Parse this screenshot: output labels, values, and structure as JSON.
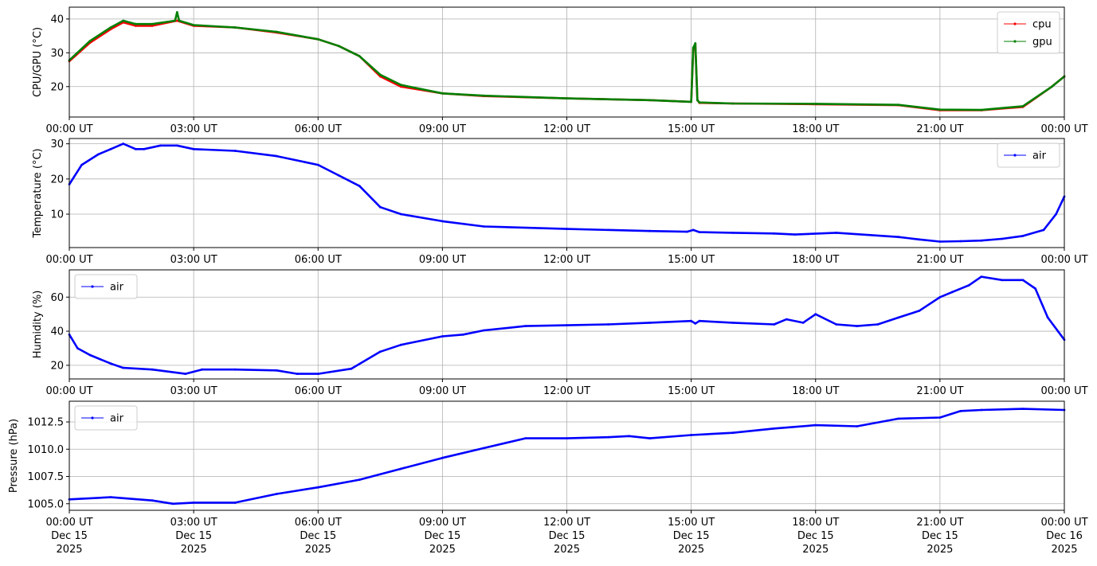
{
  "x_ticks": [
    "00:00 UT",
    "03:00 UT",
    "06:00 UT",
    "09:00 UT",
    "12:00 UT",
    "15:00 UT",
    "18:00 UT",
    "21:00 UT",
    "00:00 UT"
  ],
  "x_ticks_bottom": [
    [
      "00:00 UT",
      "Dec 15",
      "2025"
    ],
    [
      "03:00 UT",
      "Dec 15",
      "2025"
    ],
    [
      "06:00 UT",
      "Dec 15",
      "2025"
    ],
    [
      "09:00 UT",
      "Dec 15",
      "2025"
    ],
    [
      "12:00 UT",
      "Dec 15",
      "2025"
    ],
    [
      "15:00 UT",
      "Dec 15",
      "2025"
    ],
    [
      "18:00 UT",
      "Dec 15",
      "2025"
    ],
    [
      "21:00 UT",
      "Dec 15",
      "2025"
    ],
    [
      "00:00 UT",
      "Dec 16",
      "2025"
    ]
  ],
  "chart_data": [
    {
      "type": "line",
      "ylabel": "CPU/GPU (°C)",
      "xlim": [
        "2025-12-15 00:00",
        "2025-12-16 00:00"
      ],
      "ylim": [
        11,
        43.5
      ],
      "yticks": [
        20,
        30,
        40
      ],
      "grid": true,
      "legend": "upper right",
      "series": [
        {
          "name": "cpu",
          "color": "#ff0000",
          "x_hours": [
            0,
            0.5,
            1.0,
            1.3,
            1.6,
            2.0,
            2.6,
            3.0,
            4.0,
            5.0,
            6.0,
            6.5,
            7.0,
            7.5,
            8.0,
            9.0,
            10.0,
            12.0,
            14.0,
            15.0,
            15.05,
            15.1,
            15.15,
            15.2,
            16.0,
            18.0,
            20.0,
            21.0,
            22.0,
            23.0,
            23.7,
            24.0
          ],
          "values": [
            27.5,
            33,
            37,
            39,
            38,
            38,
            39.5,
            38,
            37.5,
            36,
            34,
            32,
            29,
            23,
            20,
            18,
            17.2,
            16.5,
            16,
            15.5,
            31,
            32.5,
            16,
            15.2,
            15,
            14.8,
            14.5,
            13,
            13,
            14,
            20,
            23
          ]
        },
        {
          "name": "gpu",
          "color": "#008000",
          "x_hours": [
            0,
            0.5,
            1.0,
            1.3,
            1.6,
            2.0,
            2.55,
            2.6,
            2.65,
            3.0,
            4.0,
            5.0,
            6.0,
            6.5,
            7.0,
            7.5,
            8.0,
            9.0,
            10.0,
            12.0,
            14.0,
            15.0,
            15.05,
            15.1,
            15.15,
            15.2,
            16.0,
            18.0,
            20.0,
            21.0,
            22.0,
            23.0,
            23.7,
            24.0
          ],
          "values": [
            27.8,
            33.5,
            37.5,
            39.5,
            38.5,
            38.5,
            39.5,
            42,
            39.5,
            38.2,
            37.5,
            36.2,
            34,
            32,
            29,
            23.5,
            20.5,
            18,
            17.3,
            16.5,
            16,
            15.5,
            31.5,
            32.8,
            16,
            15.3,
            15,
            14.9,
            14.6,
            13.2,
            13.1,
            14.2,
            20,
            23
          ]
        }
      ]
    },
    {
      "type": "line",
      "ylabel": "Temperature (°C)",
      "xlim": [
        "2025-12-15 00:00",
        "2025-12-16 00:00"
      ],
      "ylim": [
        0.5,
        31.5
      ],
      "yticks": [
        10,
        20,
        30
      ],
      "grid": true,
      "legend": "upper right",
      "series": [
        {
          "name": "air",
          "color": "#0000ff",
          "x_hours": [
            0,
            0.3,
            0.7,
            1.0,
            1.3,
            1.6,
            1.8,
            2.2,
            2.6,
            3.0,
            4.0,
            5.0,
            6.0,
            6.5,
            7.0,
            7.5,
            8.0,
            9.0,
            10.0,
            12.0,
            14.0,
            14.9,
            15.05,
            15.2,
            16.0,
            17.0,
            17.5,
            18.5,
            20.0,
            20.5,
            21.0,
            21.5,
            22.0,
            22.5,
            23.0,
            23.5,
            23.8,
            24.0
          ],
          "values": [
            18.5,
            24,
            27,
            28.5,
            30,
            28.5,
            28.5,
            29.5,
            29.5,
            28.5,
            28,
            26.5,
            24,
            21,
            18,
            12,
            10,
            8,
            6.5,
            5.8,
            5.2,
            5,
            5.5,
            4.9,
            4.7,
            4.5,
            4.2,
            4.7,
            3.5,
            2.8,
            2.2,
            2.3,
            2.5,
            3,
            3.8,
            5.5,
            10,
            15
          ]
        }
      ]
    },
    {
      "type": "line",
      "ylabel": "Humidity (%)",
      "xlim": [
        "2025-12-15 00:00",
        "2025-12-16 00:00"
      ],
      "ylim": [
        12,
        76
      ],
      "yticks": [
        20,
        40,
        60
      ],
      "grid": true,
      "legend": "upper left",
      "series": [
        {
          "name": "air",
          "color": "#0000ff",
          "x_hours": [
            0,
            0.2,
            0.5,
            1.0,
            1.3,
            2.0,
            2.8,
            3.2,
            4.0,
            5.0,
            5.5,
            6.0,
            6.8,
            7.5,
            8.0,
            9.0,
            9.5,
            10.0,
            11.0,
            12.0,
            13.0,
            14.0,
            15.0,
            15.1,
            15.2,
            16.0,
            17.0,
            17.3,
            17.7,
            18.0,
            18.5,
            19.0,
            19.5,
            20.0,
            20.5,
            21.0,
            21.3,
            21.7,
            22.0,
            22.5,
            23.0,
            23.3,
            23.6,
            24.0
          ],
          "values": [
            38,
            30,
            26,
            21,
            18.5,
            17.5,
            15,
            17.5,
            17.5,
            17,
            15,
            15,
            18,
            28,
            32,
            37,
            38,
            40.5,
            43,
            43.5,
            44,
            45,
            46,
            44.5,
            46,
            45,
            44,
            47,
            45,
            50,
            44,
            43,
            44,
            48,
            52,
            60,
            63,
            67,
            72,
            70,
            70,
            65,
            48,
            35
          ]
        }
      ]
    },
    {
      "type": "line",
      "ylabel": "Pressure (hPa)",
      "xlim": [
        "2025-12-15 00:00",
        "2025-12-16 00:00"
      ],
      "ylim": [
        1004.4,
        1014.4
      ],
      "yticks": [
        1005.0,
        1007.5,
        1010.0,
        1012.5
      ],
      "ytick_labels": [
        "1005.0",
        "1007.5",
        "1010.0",
        "1012.5"
      ],
      "grid": true,
      "legend": "upper left",
      "series": [
        {
          "name": "air",
          "color": "#0000ff",
          "x_hours": [
            0,
            1.0,
            2.0,
            2.5,
            3.0,
            4.0,
            5.0,
            6.0,
            7.0,
            8.0,
            9.0,
            10.0,
            11.0,
            12.0,
            13.0,
            13.5,
            14.0,
            15.0,
            16.0,
            17.0,
            18.0,
            19.0,
            20.0,
            21.0,
            21.5,
            22.0,
            23.0,
            24.0
          ],
          "values": [
            1005.4,
            1005.6,
            1005.3,
            1005.0,
            1005.1,
            1005.1,
            1005.9,
            1006.5,
            1007.2,
            1008.2,
            1009.2,
            1010.1,
            1011.0,
            1011.0,
            1011.1,
            1011.2,
            1011.0,
            1011.3,
            1011.5,
            1011.9,
            1012.2,
            1012.1,
            1012.8,
            1012.9,
            1013.5,
            1013.6,
            1013.7,
            1013.6
          ]
        }
      ]
    }
  ]
}
